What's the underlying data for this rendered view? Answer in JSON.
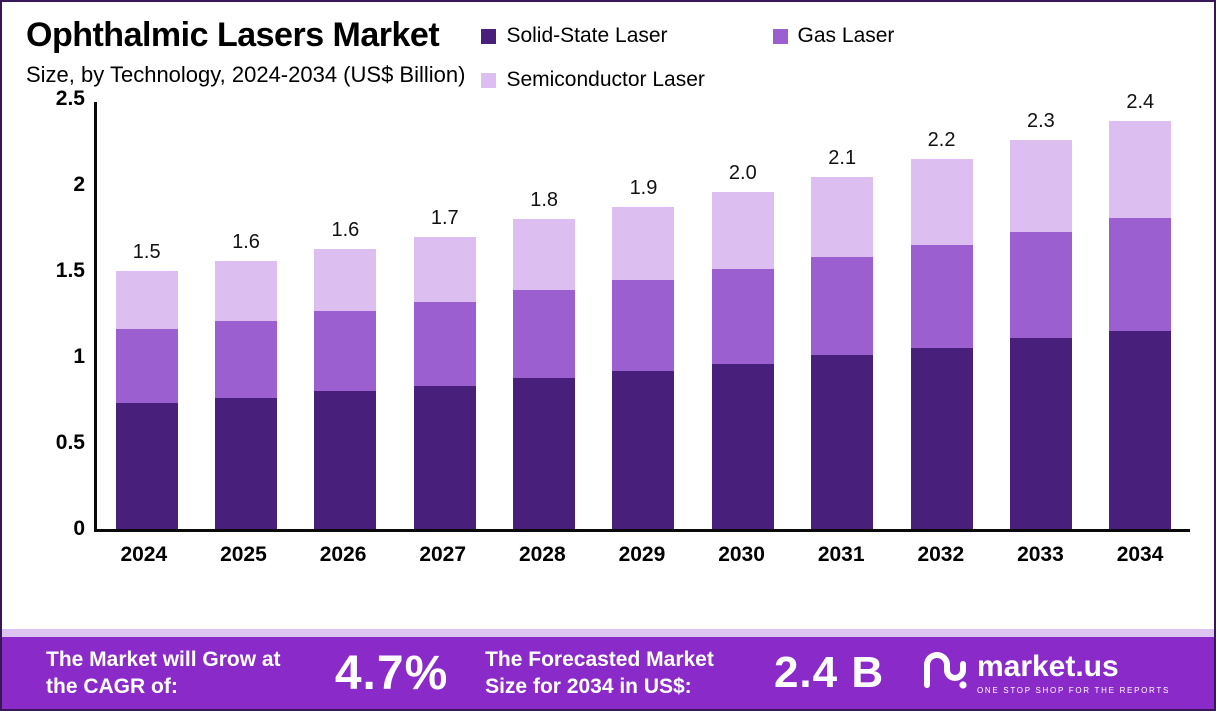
{
  "header": {
    "title": "Ophthalmic Lasers Market",
    "subtitle": "Size, by Technology, 2024-2034 (US$ Billion)"
  },
  "legend": [
    {
      "label": "Solid-State Laser",
      "color": "#481f7a"
    },
    {
      "label": "Gas Laser",
      "color": "#9b5fd0"
    },
    {
      "label": "Semiconductor Laser",
      "color": "#ddbef1"
    }
  ],
  "chart_data": {
    "type": "bar",
    "stacked": true,
    "title": "Ophthalmic Lasers Market Size, by Technology, 2024-2034 (US$ Billion)",
    "unit": "US$ Billion",
    "categories": [
      "2024",
      "2025",
      "2026",
      "2027",
      "2028",
      "2029",
      "2030",
      "2031",
      "2032",
      "2033",
      "2034"
    ],
    "series": [
      {
        "name": "Solid-State Laser",
        "color": "#481f7a",
        "values": [
          0.73,
          0.76,
          0.8,
          0.83,
          0.88,
          0.92,
          0.96,
          1.01,
          1.05,
          1.11,
          1.15
        ]
      },
      {
        "name": "Gas Laser",
        "color": "#9b5fd0",
        "values": [
          0.43,
          0.45,
          0.47,
          0.49,
          0.51,
          0.53,
          0.55,
          0.57,
          0.6,
          0.62,
          0.66
        ]
      },
      {
        "name": "Semiconductor Laser",
        "color": "#ddbef1",
        "values": [
          0.34,
          0.35,
          0.36,
          0.38,
          0.41,
          0.42,
          0.45,
          0.47,
          0.5,
          0.53,
          0.56
        ]
      }
    ],
    "totals_labels": [
      "1.5",
      "1.6",
      "1.6",
      "1.7",
      "1.8",
      "1.9",
      "2.0",
      "2.1",
      "2.2",
      "2.3",
      "2.4"
    ],
    "y_ticks": [
      "0",
      "0.5",
      "1",
      "1.5",
      "2",
      "2.5"
    ],
    "ylim": [
      0,
      2.5
    ],
    "grid": false,
    "legend_position": "top-right"
  },
  "banner": {
    "cagr_label": "The Market will Grow at the CAGR of:",
    "cagr_value": "4.7%",
    "forecast_label": "The Forecasted Market Size for 2034 in US$:",
    "forecast_value": "2.4 B",
    "brand": "market.us",
    "brand_tagline": "ONE STOP SHOP FOR THE REPORTS",
    "background": "#8a2bc9"
  }
}
